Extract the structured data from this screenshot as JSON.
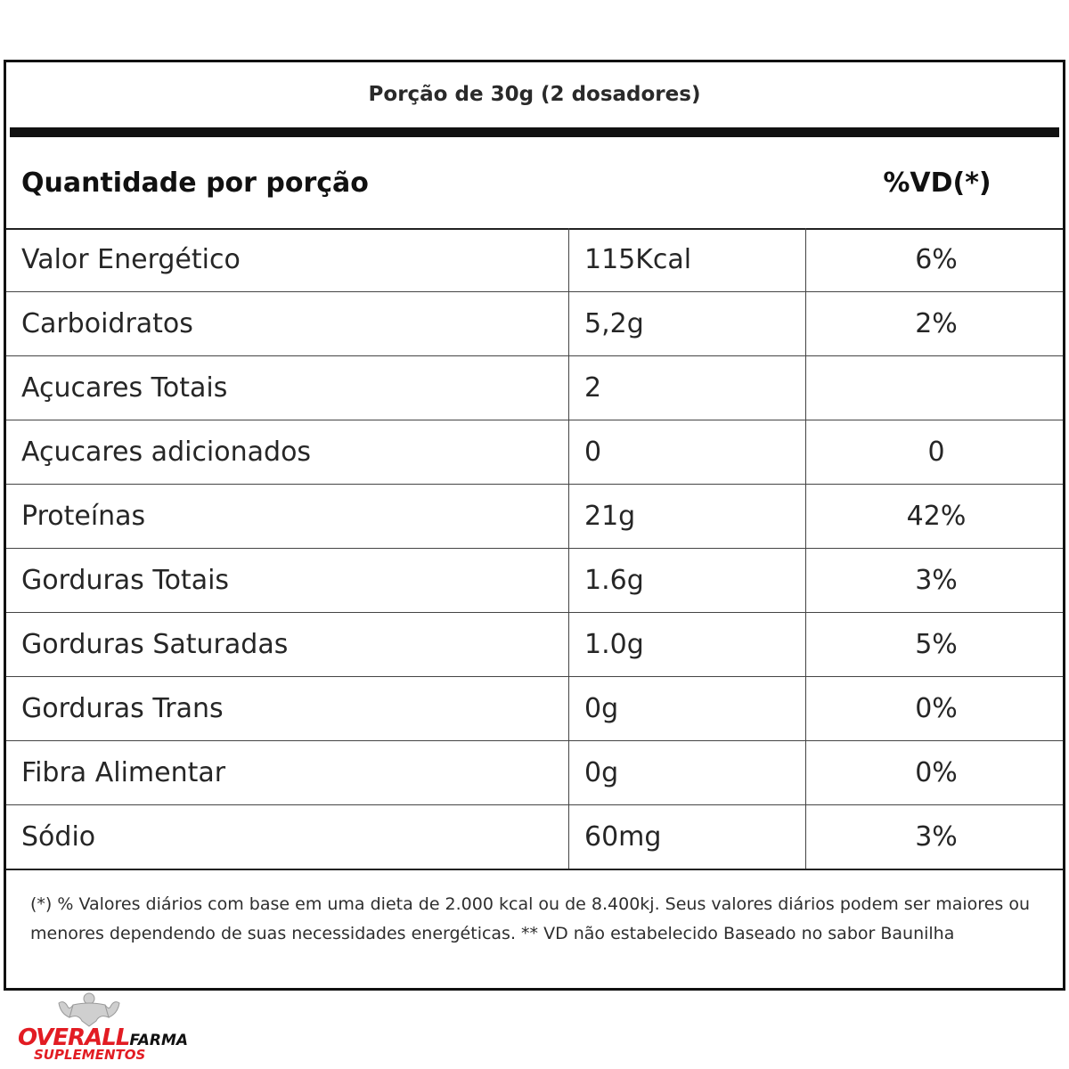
{
  "serving": "Porção de 30g (2 dosadores)",
  "header": {
    "left": "Quantidade por porção",
    "right": "%VD(*)"
  },
  "rows": [
    {
      "name": "Valor Energético",
      "amount": "115Kcal",
      "vd": "6%"
    },
    {
      "name": "Carboidratos",
      "amount": "5,2g",
      "vd": "2%"
    },
    {
      "name": "Açucares Totais",
      "amount": "2",
      "vd": ""
    },
    {
      "name": "Açucares adicionados",
      "amount": "0",
      "vd": "0"
    },
    {
      "name": "Proteínas",
      "amount": "21g",
      "vd": "42%"
    },
    {
      "name": "Gorduras Totais",
      "amount": "1.6g",
      "vd": "3%"
    },
    {
      "name": "Gorduras Saturadas",
      "amount": "1.0g",
      "vd": "5%"
    },
    {
      "name": "Gorduras Trans",
      "amount": "0g",
      "vd": "0%"
    },
    {
      "name": "Fibra Alimentar",
      "amount": "0g",
      "vd": "0%"
    },
    {
      "name": "Sódio",
      "amount": "60mg",
      "vd": "3%"
    }
  ],
  "footnote": "(*) % Valores diários com base em uma dieta de 2.000 kcal ou de 8.400kj. Seus valores diários podem ser maiores ou menores dependendo de suas necessidades energéticas. ** VD não estabelecido Baseado no sabor Baunilha",
  "logo": {
    "word1": "OVERALL",
    "word2": "FARMA",
    "word3": "SUPLEMENTOS",
    "emblem_icon": "bodybuilder-silhouette-icon",
    "colors": {
      "accent": "#e21c23",
      "dark": "#111111"
    }
  }
}
